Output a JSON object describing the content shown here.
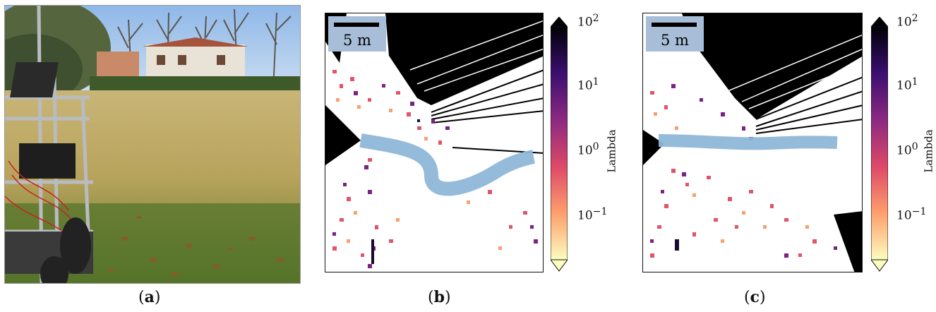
{
  "panels": {
    "a": {
      "caption_open": "(",
      "caption_letter": "a",
      "caption_close": ")"
    },
    "b": {
      "caption_open": "(",
      "caption_letter": "b",
      "caption_close": ")",
      "scale_label": "5 m"
    },
    "c": {
      "caption_open": "(",
      "caption_letter": "c",
      "caption_close": ")",
      "scale_label": "5 m"
    }
  },
  "colorbar": {
    "label": "Lambda",
    "ticks": [
      {
        "base": "10",
        "exp": "2"
      },
      {
        "base": "10",
        "exp": "1"
      },
      {
        "base": "10",
        "exp": "0"
      },
      {
        "base": "10",
        "exp": "−1"
      }
    ],
    "colors": [
      "#000004",
      "#3b0f70",
      "#8c2981",
      "#de4968",
      "#fe9f6d",
      "#fcfdbf"
    ]
  }
}
